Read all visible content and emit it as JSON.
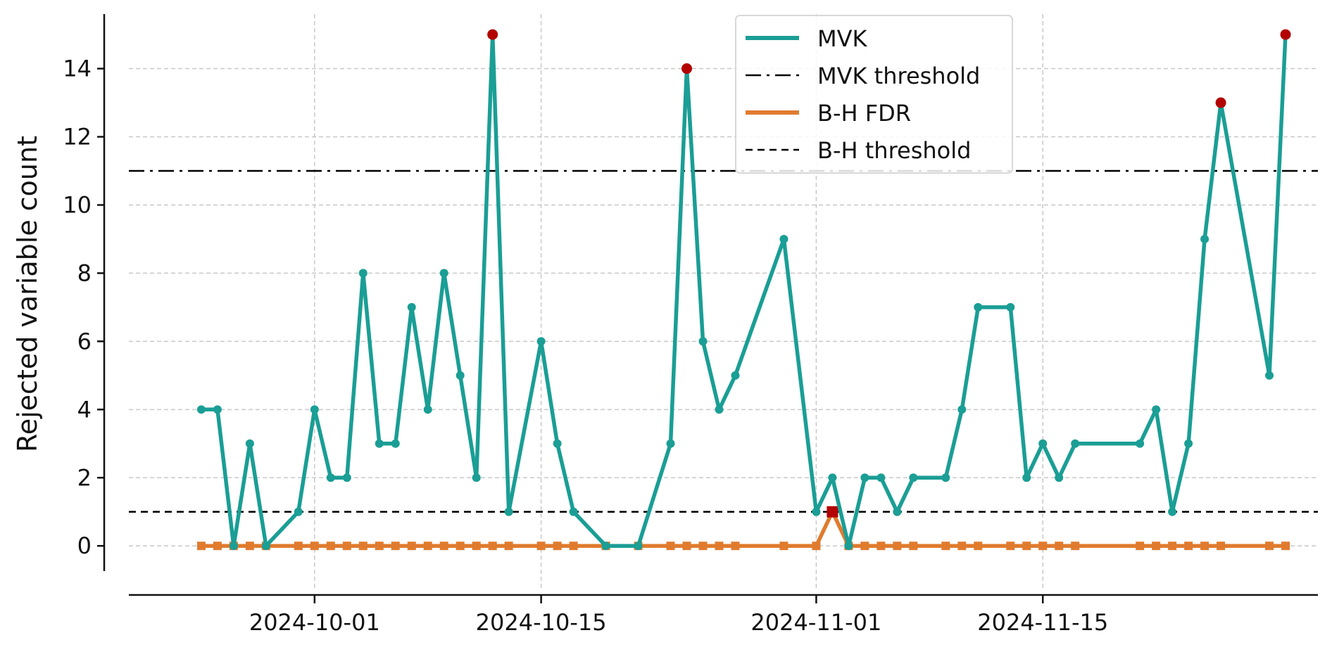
{
  "chart_data": {
    "type": "line",
    "title": "",
    "xlabel": "",
    "ylabel": "Rejected variable count",
    "xlim": [
      "2024-09-18",
      "2024-12-02"
    ],
    "ylim": [
      -0.8,
      15.6
    ],
    "x_ticks": [
      "2024-10-01",
      "2024-10-15",
      "2024-11-01",
      "2024-11-15"
    ],
    "y_ticks": [
      0,
      2,
      4,
      6,
      8,
      10,
      12,
      14
    ],
    "grid": true,
    "legend_position": "top-right",
    "series": [
      {
        "name": "MVK",
        "color": "#1a9e95",
        "marker": "circle",
        "points": [
          [
            "2024-09-24",
            4
          ],
          [
            "2024-09-25",
            4
          ],
          [
            "2024-09-26",
            0
          ],
          [
            "2024-09-27",
            3
          ],
          [
            "2024-09-28",
            0
          ],
          [
            "2024-09-30",
            1
          ],
          [
            "2024-10-01",
            4
          ],
          [
            "2024-10-02",
            2
          ],
          [
            "2024-10-03",
            2
          ],
          [
            "2024-10-04",
            8
          ],
          [
            "2024-10-05",
            3
          ],
          [
            "2024-10-06",
            3
          ],
          [
            "2024-10-07",
            7
          ],
          [
            "2024-10-08",
            4
          ],
          [
            "2024-10-09",
            8
          ],
          [
            "2024-10-10",
            5
          ],
          [
            "2024-10-11",
            2
          ],
          [
            "2024-10-12",
            15
          ],
          [
            "2024-10-13",
            1
          ],
          [
            "2024-10-15",
            6
          ],
          [
            "2024-10-16",
            3
          ],
          [
            "2024-10-17",
            1
          ],
          [
            "2024-10-19",
            0
          ],
          [
            "2024-10-21",
            0
          ],
          [
            "2024-10-23",
            3
          ],
          [
            "2024-10-24",
            14
          ],
          [
            "2024-10-25",
            6
          ],
          [
            "2024-10-26",
            4
          ],
          [
            "2024-10-27",
            5
          ],
          [
            "2024-10-30",
            9
          ],
          [
            "2024-11-01",
            1
          ],
          [
            "2024-11-02",
            2
          ],
          [
            "2024-11-03",
            0
          ],
          [
            "2024-11-04",
            2
          ],
          [
            "2024-11-05",
            2
          ],
          [
            "2024-11-06",
            1
          ],
          [
            "2024-11-07",
            2
          ],
          [
            "2024-11-09",
            2
          ],
          [
            "2024-11-10",
            4
          ],
          [
            "2024-11-11",
            7
          ],
          [
            "2024-11-13",
            7
          ],
          [
            "2024-11-14",
            2
          ],
          [
            "2024-11-15",
            3
          ],
          [
            "2024-11-16",
            2
          ],
          [
            "2024-11-17",
            3
          ],
          [
            "2024-11-21",
            3
          ],
          [
            "2024-11-22",
            4
          ],
          [
            "2024-11-23",
            1
          ],
          [
            "2024-11-24",
            3
          ],
          [
            "2024-11-25",
            9
          ],
          [
            "2024-11-26",
            13
          ],
          [
            "2024-11-29",
            5
          ],
          [
            "2024-11-30",
            15
          ]
        ]
      },
      {
        "name": "B-H FDR",
        "color": "#e07b2e",
        "marker": "square",
        "points": [
          [
            "2024-09-24",
            0
          ],
          [
            "2024-09-25",
            0
          ],
          [
            "2024-09-26",
            0
          ],
          [
            "2024-09-27",
            0
          ],
          [
            "2024-09-28",
            0
          ],
          [
            "2024-09-30",
            0
          ],
          [
            "2024-10-01",
            0
          ],
          [
            "2024-10-02",
            0
          ],
          [
            "2024-10-03",
            0
          ],
          [
            "2024-10-04",
            0
          ],
          [
            "2024-10-05",
            0
          ],
          [
            "2024-10-06",
            0
          ],
          [
            "2024-10-07",
            0
          ],
          [
            "2024-10-08",
            0
          ],
          [
            "2024-10-09",
            0
          ],
          [
            "2024-10-10",
            0
          ],
          [
            "2024-10-11",
            0
          ],
          [
            "2024-10-12",
            0
          ],
          [
            "2024-10-13",
            0
          ],
          [
            "2024-10-15",
            0
          ],
          [
            "2024-10-16",
            0
          ],
          [
            "2024-10-17",
            0
          ],
          [
            "2024-10-19",
            0
          ],
          [
            "2024-10-21",
            0
          ],
          [
            "2024-10-23",
            0
          ],
          [
            "2024-10-24",
            0
          ],
          [
            "2024-10-25",
            0
          ],
          [
            "2024-10-26",
            0
          ],
          [
            "2024-10-27",
            0
          ],
          [
            "2024-10-30",
            0
          ],
          [
            "2024-11-01",
            0
          ],
          [
            "2024-11-02",
            1
          ],
          [
            "2024-11-03",
            0
          ],
          [
            "2024-11-04",
            0
          ],
          [
            "2024-11-05",
            0
          ],
          [
            "2024-11-06",
            0
          ],
          [
            "2024-11-07",
            0
          ],
          [
            "2024-11-09",
            0
          ],
          [
            "2024-11-10",
            0
          ],
          [
            "2024-11-11",
            0
          ],
          [
            "2024-11-13",
            0
          ],
          [
            "2024-11-14",
            0
          ],
          [
            "2024-11-15",
            0
          ],
          [
            "2024-11-16",
            0
          ],
          [
            "2024-11-17",
            0
          ],
          [
            "2024-11-21",
            0
          ],
          [
            "2024-11-22",
            0
          ],
          [
            "2024-11-23",
            0
          ],
          [
            "2024-11-24",
            0
          ],
          [
            "2024-11-25",
            0
          ],
          [
            "2024-11-26",
            0
          ],
          [
            "2024-11-29",
            0
          ],
          [
            "2024-11-30",
            0
          ]
        ]
      }
    ],
    "thresholds": [
      {
        "name": "MVK threshold",
        "value": 11,
        "style": "dash-dot",
        "color": "#000000"
      },
      {
        "name": "B-H threshold",
        "value": 1,
        "style": "dashed",
        "color": "#000000"
      }
    ],
    "exceedance_color": "#b30000",
    "legend": [
      "MVK",
      "MVK threshold",
      "B-H FDR",
      "B-H threshold"
    ]
  }
}
